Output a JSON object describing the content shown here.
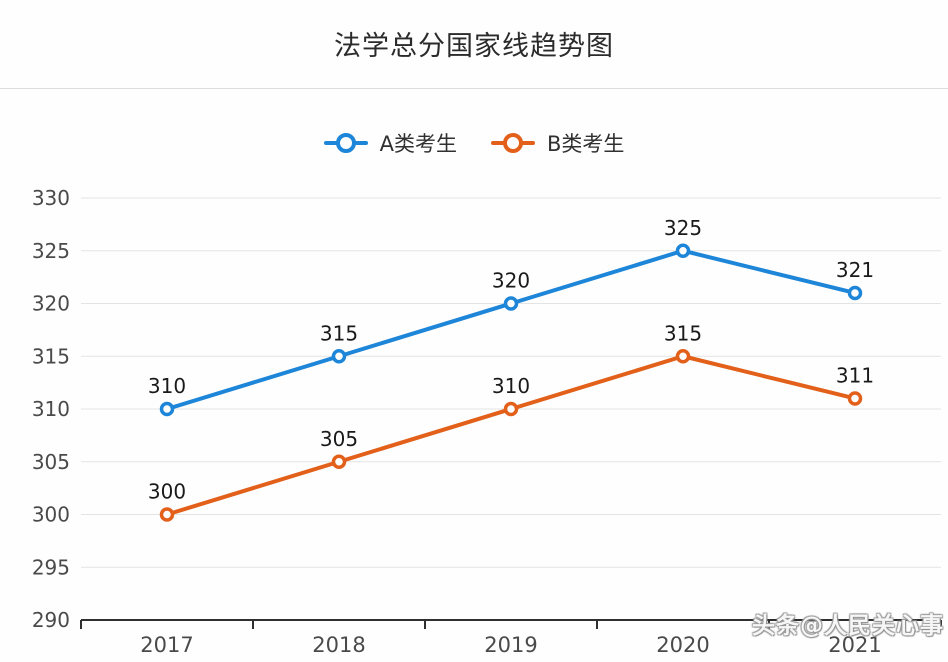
{
  "title": "法学总分国家线趋势图",
  "legend": {
    "items": [
      {
        "label": "A类考生",
        "color": "#1e86d8"
      },
      {
        "label": "B类考生",
        "color": "#e2601a"
      }
    ]
  },
  "watermark": "头条@人民关心事",
  "colors": {
    "series_a": "#1e86d8",
    "series_b": "#e2601a",
    "gridline": "#e4e4e4",
    "axis_line": "#2f2f2f",
    "axis_text": "#4a4a4a",
    "data_label": "#1a1a1a",
    "divider": "#dcdcdc"
  },
  "chart_data": {
    "type": "line",
    "title": "法学总分国家线趋势图",
    "categories": [
      "2017",
      "2018",
      "2019",
      "2020",
      "2021"
    ],
    "series": [
      {
        "name": "A类考生",
        "color": "#1e86d8",
        "values": [
          310,
          315,
          320,
          325,
          321
        ]
      },
      {
        "name": "B类考生",
        "color": "#e2601a",
        "values": [
          300,
          305,
          310,
          315,
          311
        ]
      }
    ],
    "xlabel": "",
    "ylabel": "",
    "ylim": [
      290,
      330
    ],
    "yticks": [
      290,
      295,
      300,
      305,
      310,
      315,
      320,
      325,
      330
    ],
    "grid": true,
    "legend_position": "top",
    "data_labels": true
  }
}
